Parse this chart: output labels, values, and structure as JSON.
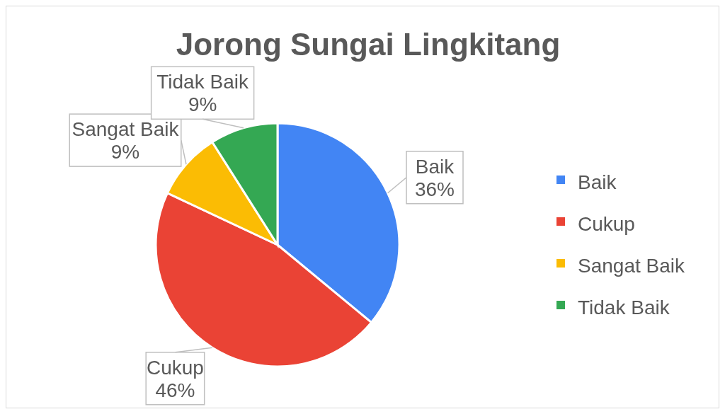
{
  "chart_data": {
    "type": "pie",
    "title": "Jorong Sungai Lingkitang",
    "categories": [
      "Baik",
      "Cukup",
      "Sangat Baik",
      "Tidak Baik"
    ],
    "values": [
      36,
      46,
      9,
      9
    ],
    "value_labels": [
      "36%",
      "46%",
      "9%",
      "9%"
    ],
    "colors": [
      "#4285f4",
      "#ea4335",
      "#fbbc04",
      "#34a853"
    ],
    "legend": "right"
  }
}
